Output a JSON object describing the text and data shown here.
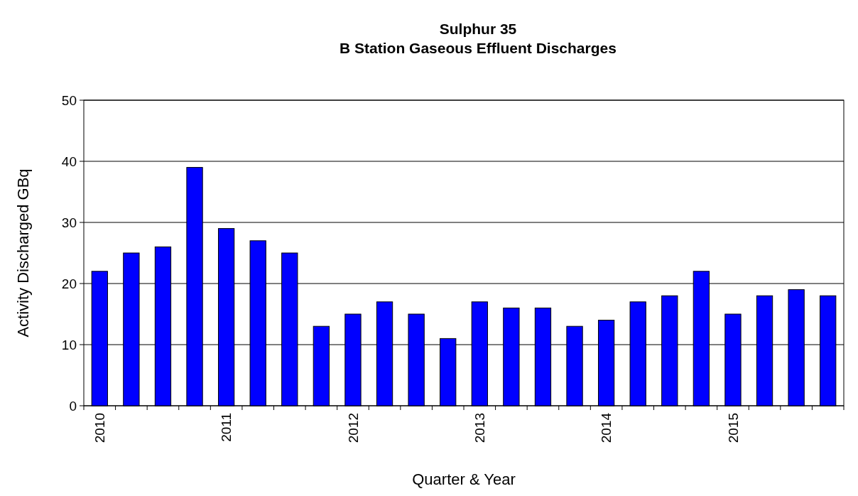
{
  "chart_data": {
    "type": "bar",
    "title": "Sulphur 35\nB Station Gaseous Effluent Discharges",
    "xlabel": "Quarter & Year",
    "ylabel": "Activity Discharged GBq",
    "categories": [
      "2010",
      null,
      null,
      null,
      "2011",
      null,
      null,
      null,
      "2012",
      null,
      null,
      null,
      "2013",
      null,
      null,
      null,
      "2014",
      null,
      null,
      null,
      "2015",
      null,
      null,
      null
    ],
    "values": [
      22,
      25,
      26,
      39,
      29,
      27,
      25,
      13,
      15,
      17,
      15,
      11,
      17,
      16,
      16,
      13,
      14,
      17,
      18,
      22,
      15,
      18,
      19,
      18
    ],
    "color": "#0000ff",
    "ylim": [
      0,
      50
    ],
    "yticks": [
      0,
      10,
      20,
      30,
      40,
      50
    ],
    "grid": "y"
  }
}
